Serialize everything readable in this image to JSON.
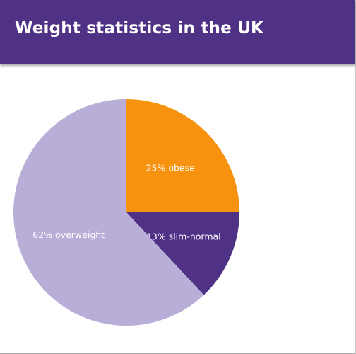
{
  "header": {
    "title": "Weight statistics in the UK",
    "background": "#4f3286"
  },
  "chart_data": {
    "type": "pie",
    "title": "Weight statistics in the UK",
    "slices": [
      {
        "label": "25% obese",
        "value": 25,
        "color": "#f7920f"
      },
      {
        "label": "13% slim-normal",
        "value": 13,
        "color": "#4f3286"
      },
      {
        "label": "62% overweight",
        "value": 62,
        "color": "#b9aed7"
      }
    ],
    "start": "12 o'clock",
    "direction": "clockwise"
  }
}
